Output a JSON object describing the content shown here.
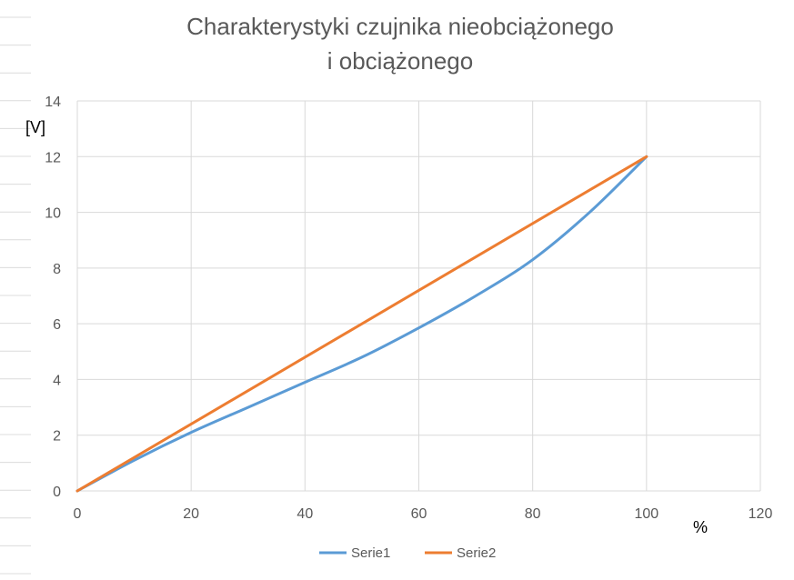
{
  "chart_data": {
    "type": "line",
    "title": [
      "Charakterystyki czujnika nieobciążonego",
      "i obciążonego"
    ],
    "xlabel": "%",
    "ylabel": "[V]",
    "xlim": [
      0,
      120
    ],
    "ylim": [
      0,
      14
    ],
    "xticks": [
      0,
      20,
      40,
      60,
      80,
      100,
      120
    ],
    "yticks": [
      0,
      2,
      4,
      6,
      8,
      10,
      12,
      14
    ],
    "grid": true,
    "legend_position": "bottom",
    "series": [
      {
        "name": "Serie1",
        "color": "#5b9bd5",
        "x": [
          0,
          10,
          20,
          30,
          40,
          50,
          60,
          70,
          80,
          90,
          100
        ],
        "y": [
          0,
          1.1,
          2.1,
          3.0,
          3.9,
          4.8,
          5.85,
          7.0,
          8.3,
          10.0,
          12.0
        ]
      },
      {
        "name": "Serie2",
        "color": "#ed7d31",
        "x": [
          0,
          100
        ],
        "y": [
          0,
          12.0
        ]
      }
    ]
  }
}
